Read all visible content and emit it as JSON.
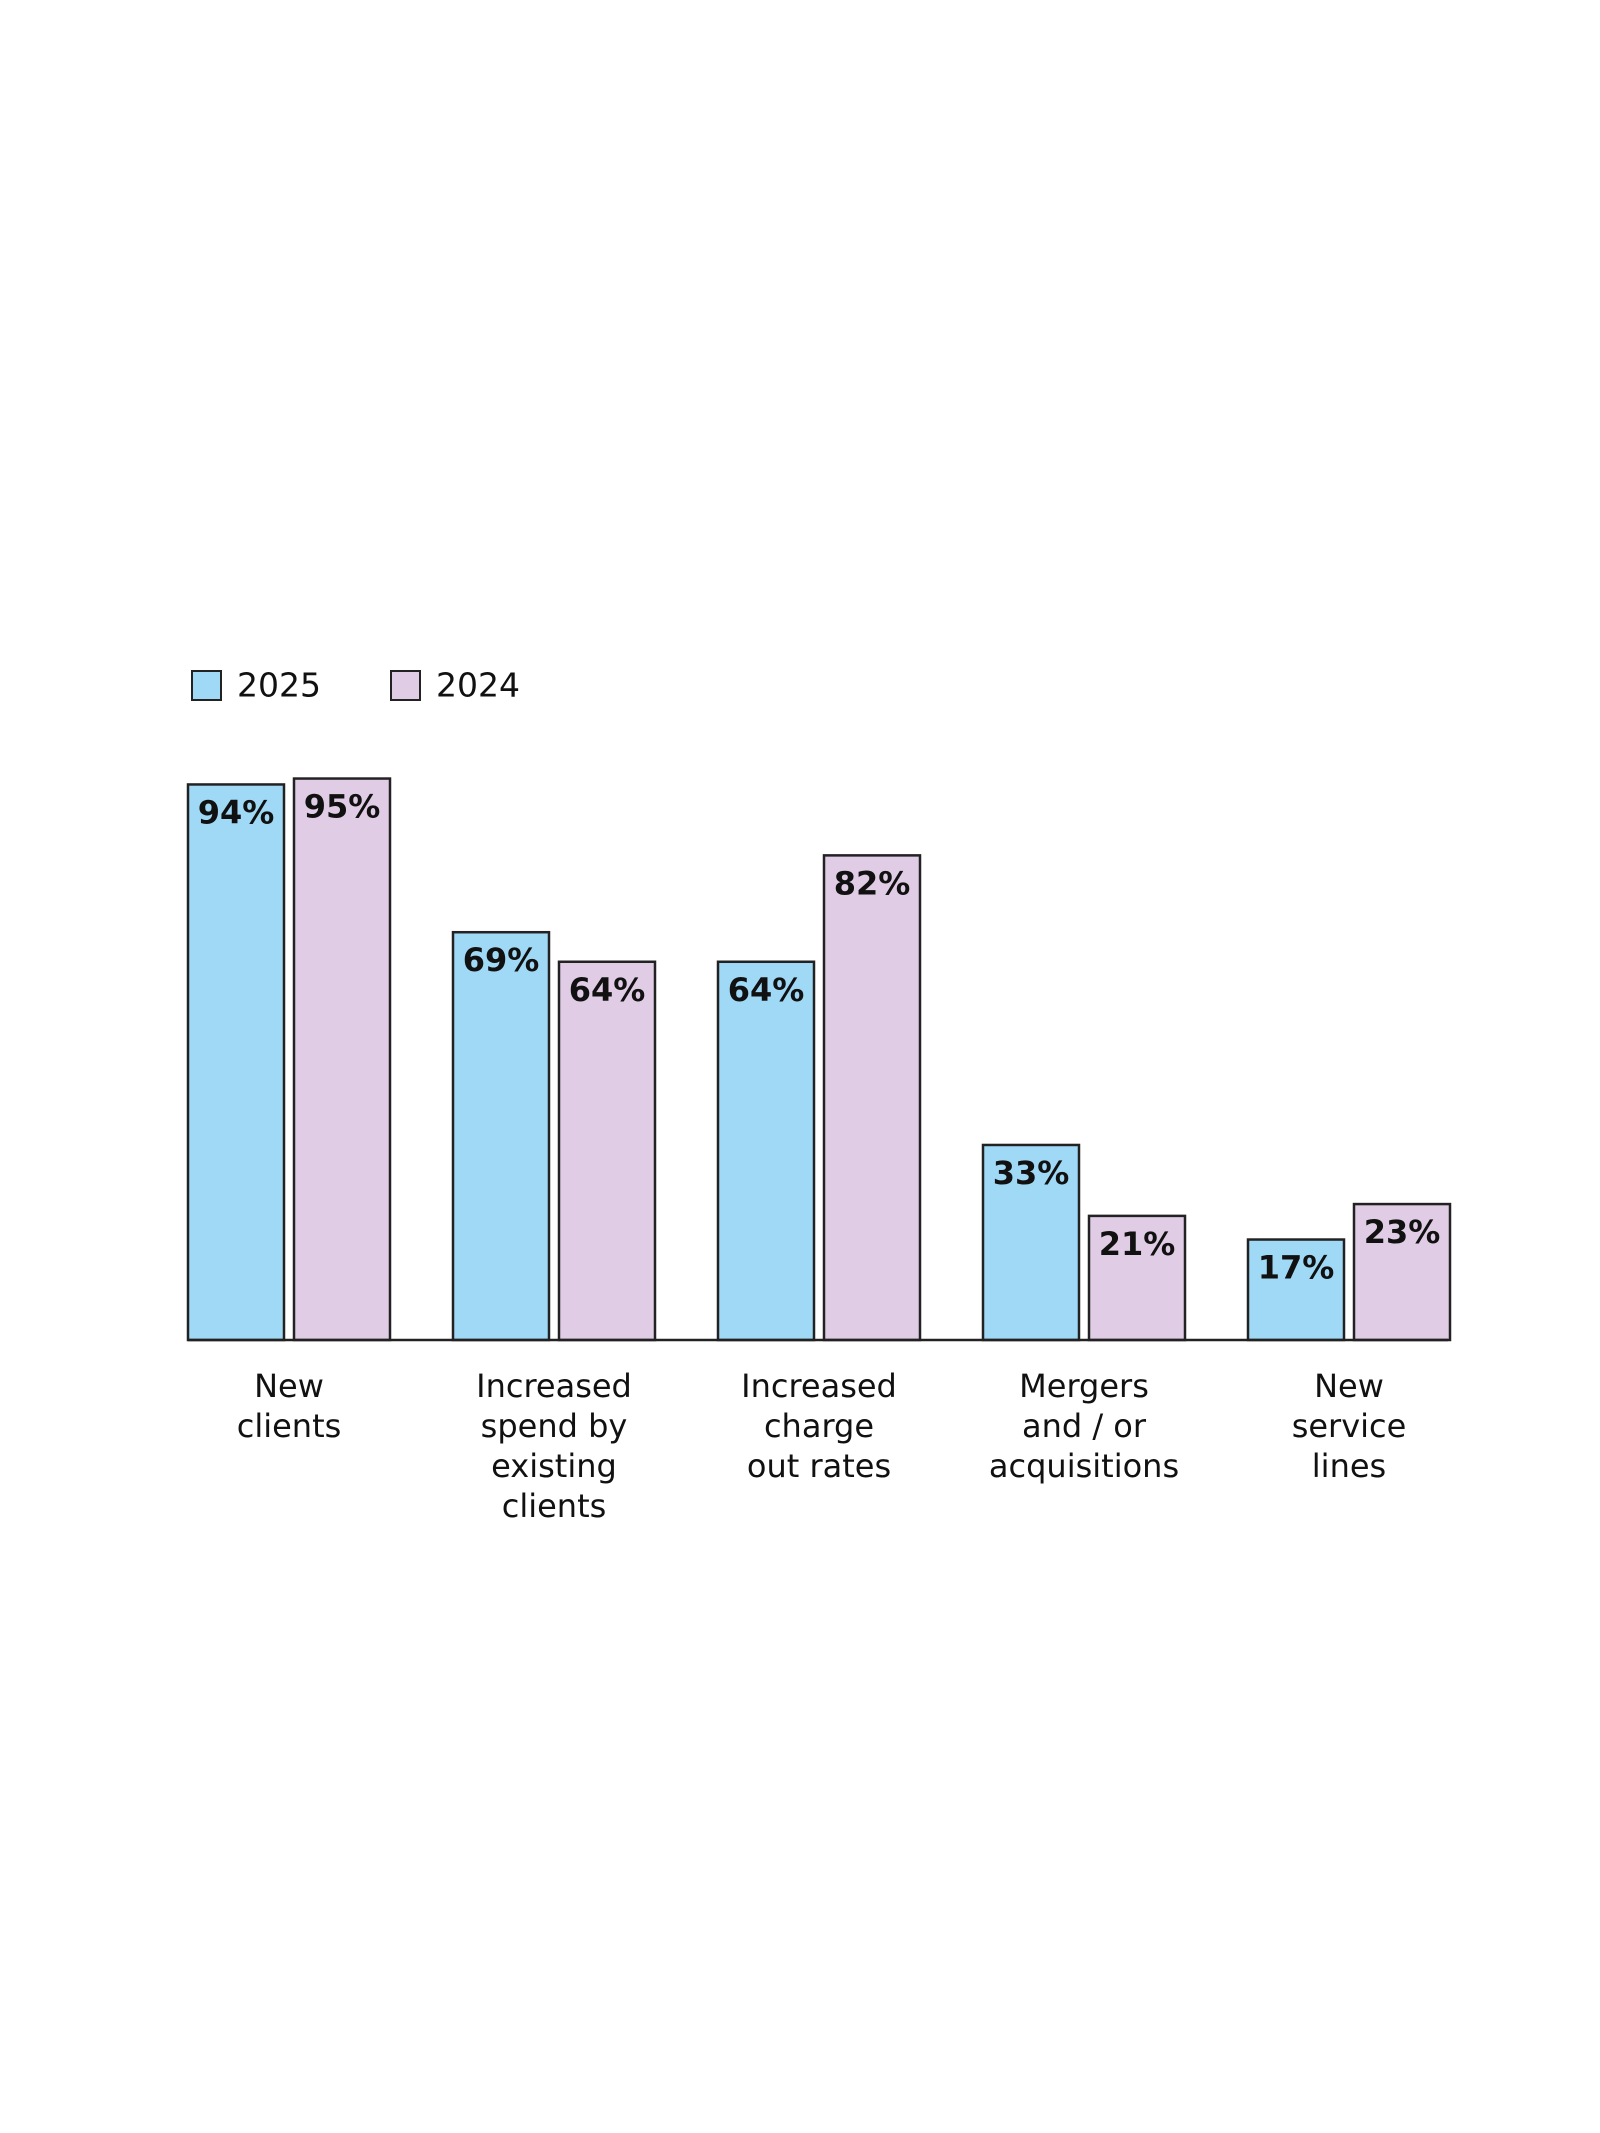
{
  "chart_data": {
    "type": "bar",
    "categories": [
      "New\nclients",
      "Increased\nspend by\nexisting\nclients",
      "Increased\ncharge\nout rates",
      "Mergers\nand / or\nacquisitions",
      "New\nservice\nlines"
    ],
    "series": [
      {
        "name": "2025",
        "color": "#9fd9f6",
        "values": [
          94,
          69,
          64,
          33,
          17
        ],
        "value_labels": [
          "94%",
          "69%",
          "64%",
          "33%",
          "17%"
        ]
      },
      {
        "name": "2024",
        "color": "#e1cce6",
        "values": [
          95,
          64,
          82,
          21,
          23
        ],
        "value_labels": [
          "95%",
          "64%",
          "82%",
          "21%",
          "23%"
        ]
      }
    ],
    "ylim": [
      0,
      100
    ],
    "legend": "top-left",
    "grid": false
  }
}
